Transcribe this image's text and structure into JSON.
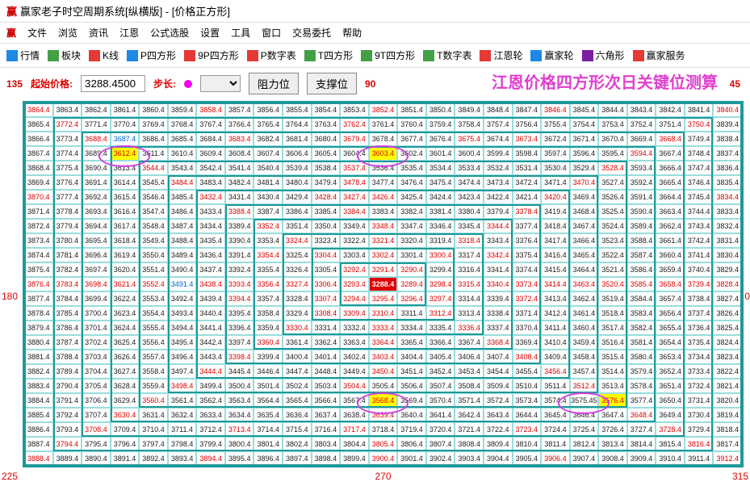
{
  "window": {
    "title": "赢家老子时空周期系统[纵横版] - [价格正方形]",
    "logo": "赢"
  },
  "menu": [
    "文件",
    "浏览",
    "资讯",
    "江恩",
    "公式选股",
    "设置",
    "工具",
    "窗口",
    "交易委托",
    "帮助"
  ],
  "toolbar": [
    {
      "icon": "#1e88e5",
      "label": "行情"
    },
    {
      "icon": "#43a047",
      "label": "板块"
    },
    {
      "icon": "#e53935",
      "label": "K线"
    },
    {
      "icon": "#1e88e5",
      "label": "P四方形"
    },
    {
      "icon": "#e53935",
      "label": "9P四方形"
    },
    {
      "icon": "#e53935",
      "label": "P数字表"
    },
    {
      "icon": "#43a047",
      "label": "T四方形"
    },
    {
      "icon": "#43a047",
      "label": "9T四方形"
    },
    {
      "icon": "#43a047",
      "label": "T数字表"
    },
    {
      "icon": "#e53935",
      "label": "江恩轮"
    },
    {
      "icon": "#1e88e5",
      "label": "赢家轮"
    },
    {
      "icon": "#7b1fa2",
      "label": "六角形"
    },
    {
      "icon": "#e53935",
      "label": "赢家服务"
    }
  ],
  "controls": {
    "c135": "135",
    "start_label": "起始价格:",
    "start_value": "3288.4500",
    "step_label": "步长:",
    "btn1": "阻力位",
    "btn2": "支撑位",
    "c90": "90",
    "overlay": "江恩价格四方形次日关键位测算",
    "c45": "45"
  },
  "axis": {
    "left": "180",
    "right": "0",
    "bl": "225",
    "bc": "270",
    "br": "315"
  },
  "grid": {
    "cols": 25,
    "rows": 19,
    "cells": [
      [
        "3864.4!r",
        "3863.4!k",
        "3862.4!k",
        "3861.4!k",
        "3860.4!k",
        "3859.4!k",
        "3858.4!r",
        "3857.4!k",
        "3856.4!k",
        "3855.4!k",
        "3854.4!k",
        "3853.4!k",
        "3852.4!r",
        "3851.4!k",
        "3850.4!k",
        "3849.4!k",
        "3848.4!k",
        "3847.4!k",
        "3846.4!r",
        "3845.4!k",
        "3844.4!k",
        "3843.4!k",
        "3842.4!k",
        "3841.4!k",
        "3840.4!r"
      ],
      [
        "3865.4!k",
        "3772.4!r",
        "3771.4!k",
        "3770.4!k",
        "3769.4!k",
        "3768.4!k",
        "3767.4!k",
        "3766.4!k",
        "3765.4!k",
        "3764.4!k",
        "3763.4!k",
        "3762.4!r",
        "3761.4!k",
        "3760.4!k",
        "3759.4!k",
        "3758.4!k",
        "3757.4!k",
        "3756.4!k",
        "3755.4!k",
        "3754.4!k",
        "3753.4!k",
        "3752.4!k",
        "3751.4!k",
        "3750.4!r",
        "3839.4!k"
      ],
      [
        "3866.4!k",
        "3773.4!k",
        "3688.4!r",
        "3687.4!b",
        "3686.4!k",
        "3685.4!k",
        "3684.4!k",
        "3683.4!r",
        "3682.4!k",
        "3681.4!k",
        "3680.4!k",
        "3679.4!r",
        "3678.4!k",
        "3677.4!k",
        "3676.4!k",
        "3675.4!r",
        "3674.4!k",
        "3673.4!r",
        "3672.4!k",
        "3671.4!k",
        "3670.4!k",
        "3669.4!k",
        "3668.4!r",
        "3749.4!k",
        "3838.4!k"
      ],
      [
        "3867.4!k",
        "3774.4!k",
        "3689.4!k",
        "3612.4!ry",
        "3611.4!k",
        "3610.4!k",
        "3609.4!k",
        "3608.4!k",
        "3607.4!k",
        "3606.4!k",
        "3605.4!k",
        "3604.4!k",
        "3603.4!ry",
        "3602.4!k",
        "3601.4!k",
        "3600.4!k",
        "3599.4!k",
        "3598.4!k",
        "3597.4!k",
        "3596.4!k",
        "3595.4!k",
        "3594.4!r",
        "3667.4!k",
        "3748.4!k",
        "3837.4!k"
      ],
      [
        "3868.4!k",
        "3775.4!k",
        "3690.4!k",
        "3613.4!k",
        "3544.4!r",
        "3543.4!k",
        "3542.4!k",
        "3541.4!k",
        "3540.4!k",
        "3539.4!k",
        "3538.4!k",
        "3537.4!r",
        "3536.4!k",
        "3535.4!k",
        "3534.4!k",
        "3533.4!k",
        "3532.4!k",
        "3531.4!k",
        "3530.4!k",
        "3529.4!k",
        "3528.4!r",
        "3593.4!k",
        "3666.4!k",
        "3747.4!k",
        "3836.4!k"
      ],
      [
        "3869.4!k",
        "3776.4!k",
        "3691.4!k",
        "3614.4!k",
        "3545.4!k",
        "3484.4!r",
        "3483.4!k",
        "3482.4!k",
        "3481.4!k",
        "3480.4!k",
        "3479.4!k",
        "3478.4!r",
        "3477.4!k",
        "3476.4!k",
        "3475.4!k",
        "3474.4!k",
        "3473.4!k",
        "3472.4!k",
        "3471.4!k",
        "3470.4!r",
        "3527.4!k",
        "3592.4!k",
        "3665.4!k",
        "3746.4!k",
        "3835.4!k"
      ],
      [
        "3870.4!r",
        "3777.4!k",
        "3692.4!k",
        "3615.4!k",
        "3546.4!k",
        "3485.4!k",
        "3432.4!r",
        "3431.4!k",
        "3430.4!k",
        "3429.4!k",
        "3428.4!r",
        "3427.4!r",
        "3426.4!r",
        "3425.4!k",
        "3424.4!k",
        "3423.4!k",
        "3422.4!k",
        "3421.4!k",
        "3420.4!r",
        "3469.4!k",
        "3526.4!k",
        "3591.4!k",
        "3664.4!k",
        "3745.4!k",
        "3834.4!r"
      ],
      [
        "3871.4!k",
        "3778.4!k",
        "3693.4!k",
        "3616.4!k",
        "3547.4!k",
        "3486.4!k",
        "3433.4!k",
        "3388.4!r",
        "3387.4!k",
        "3386.4!k",
        "3385.4!k",
        "3384.4!r",
        "3383.4!k",
        "3382.4!k",
        "3381.4!k",
        "3380.4!k",
        "3379.4!k",
        "3378.4!r",
        "3419.4!k",
        "3468.4!k",
        "3525.4!k",
        "3590.4!k",
        "3663.4!k",
        "3744.4!k",
        "3833.4!k"
      ],
      [
        "3872.4!k",
        "3779.4!k",
        "3694.4!k",
        "3617.4!k",
        "3548.4!k",
        "3487.4!k",
        "3434.4!k",
        "3389.4!k",
        "3352.4!r",
        "3351.4!k",
        "3350.4!k",
        "3349.4!k",
        "3348.4!r",
        "3347.4!k",
        "3346.4!k",
        "3345.4!k",
        "3344.4!r",
        "3377.4!k",
        "3418.4!k",
        "3467.4!k",
        "3524.4!k",
        "3589.4!k",
        "3662.4!k",
        "3743.4!k",
        "3832.4!k"
      ],
      [
        "3873.4!k",
        "3780.4!k",
        "3695.4!k",
        "3618.4!k",
        "3549.4!k",
        "3488.4!k",
        "3435.4!k",
        "3390.4!k",
        "3353.4!k",
        "3324.4!r",
        "3323.4!k",
        "3322.4!k",
        "3321.4!r",
        "3320.4!k",
        "3319.4!k",
        "3318.4!r",
        "3343.4!k",
        "3376.4!k",
        "3417.4!k",
        "3466.4!k",
        "3523.4!k",
        "3588.4!k",
        "3661.4!k",
        "3742.4!k",
        "3831.4!k"
      ],
      [
        "3874.4!k",
        "3781.4!k",
        "3696.4!k",
        "3619.4!k",
        "3550.4!k",
        "3489.4!k",
        "3436.4!k",
        "3391.4!k",
        "3354.4!r",
        "3325.4!k",
        "3304.4!r",
        "3303.4!k",
        "3302.4!r",
        "3301.4!k",
        "3300.4!r",
        "3317.4!k",
        "3342.4!r",
        "3375.4!k",
        "3416.4!k",
        "3465.4!k",
        "3522.4!k",
        "3587.4!k",
        "3660.4!k",
        "3741.4!k",
        "3830.4!k"
      ],
      [
        "3875.4!k",
        "3782.4!k",
        "3697.4!k",
        "3620.4!k",
        "3551.4!k",
        "3490.4!k",
        "3437.4!k",
        "3392.4!k",
        "3355.4!k",
        "3326.4!k",
        "3305.4!k",
        "3292.4!r",
        "3291.4!r",
        "3290.4!r",
        "3299.4!k",
        "3316.4!k",
        "3341.4!k",
        "3374.4!k",
        "3415.4!k",
        "3464.4!k",
        "3521.4!k",
        "3586.4!k",
        "3659.4!k",
        "3740.4!k",
        "3829.4!k"
      ],
      [
        "3876.4!r",
        "3783.4!r",
        "3698.4!r",
        "3621.4!r",
        "3552.4!r",
        "3491.4!b",
        "3438.4!r",
        "3393.4!r",
        "3356.4!r",
        "3327.4!r",
        "3306.4!r",
        "3293.4!r",
        "3288.4!c",
        "3289.4!r",
        "3298.4!r",
        "3315.4!r",
        "3340.4!r",
        "3373.4!r",
        "3414.4!r",
        "3463.4!r",
        "3520.4!r",
        "3585.4!r",
        "3658.4!r",
        "3739.4!r",
        "3828.4!r"
      ],
      [
        "3877.4!k",
        "3784.4!k",
        "3699.4!k",
        "3622.4!k",
        "3553.4!k",
        "3492.4!k",
        "3439.4!k",
        "3394.4!r",
        "3357.4!k",
        "3328.4!k",
        "3307.4!r",
        "3294.4!r",
        "3295.4!r",
        "3296.4!r",
        "3297.4!r",
        "3314.4!k",
        "3339.4!k",
        "3372.4!r",
        "3413.4!k",
        "3462.4!k",
        "3519.4!k",
        "3584.4!k",
        "3657.4!k",
        "3738.4!k",
        "3827.4!k"
      ],
      [
        "3878.4!k",
        "3785.4!k",
        "3700.4!k",
        "3623.4!k",
        "3554.4!k",
        "3493.4!k",
        "3440.4!k",
        "3395.4!k",
        "3358.4!k",
        "3329.4!k",
        "3308.4!r",
        "3309.4!r",
        "3310.4!r",
        "3311.4!k",
        "3312.4!r",
        "3313.4!k",
        "3338.4!k",
        "3371.4!k",
        "3412.4!k",
        "3461.4!k",
        "3518.4!k",
        "3583.4!k",
        "3656.4!k",
        "3737.4!k",
        "3826.4!k"
      ],
      [
        "3879.4!k",
        "3786.4!k",
        "3701.4!k",
        "3624.4!k",
        "3555.4!k",
        "3494.4!k",
        "3441.4!k",
        "3396.4!k",
        "3359.4!k",
        "3330.4!r",
        "3331.4!k",
        "3332.4!k",
        "3333.4!r",
        "3334.4!k",
        "3335.4!k",
        "3336.4!r",
        "3337.4!k",
        "3370.4!k",
        "3411.4!k",
        "3460.4!k",
        "3517.4!k",
        "3582.4!k",
        "3655.4!k",
        "3736.4!k",
        "3825.4!k"
      ],
      [
        "3880.4!k",
        "3787.4!k",
        "3702.4!k",
        "3625.4!k",
        "3556.4!k",
        "3495.4!k",
        "3442.4!k",
        "3397.4!k",
        "3360.4!r",
        "3361.4!k",
        "3362.4!k",
        "3363.4!k",
        "3364.4!r",
        "3365.4!k",
        "3366.4!k",
        "3367.4!k",
        "3368.4!r",
        "3369.4!k",
        "3410.4!k",
        "3459.4!k",
        "3516.4!k",
        "3581.4!k",
        "3654.4!k",
        "3735.4!k",
        "3824.4!k"
      ],
      [
        "3881.4!k",
        "3788.4!k",
        "3703.4!k",
        "3626.4!k",
        "3557.4!k",
        "3496.4!k",
        "3443.4!k",
        "3398.4!r",
        "3399.4!k",
        "3400.4!k",
        "3401.4!k",
        "3402.4!k",
        "3403.4!r",
        "3404.4!k",
        "3405.4!k",
        "3406.4!k",
        "3407.4!k",
        "3408.4!r",
        "3409.4!k",
        "3458.4!k",
        "3515.4!k",
        "3580.4!k",
        "3653.4!k",
        "3734.4!k",
        "3823.4!k"
      ],
      [
        "3882.4!k",
        "3789.4!k",
        "3704.4!k",
        "3627.4!k",
        "3558.4!k",
        "3497.4!k",
        "3444.4!r",
        "3445.4!k",
        "3446.4!k",
        "3447.4!k",
        "3448.4!k",
        "3449.4!k",
        "3450.4!r",
        "3451.4!k",
        "3452.4!k",
        "3453.4!k",
        "3454.4!k",
        "3455.4!k",
        "3456.4!r",
        "3457.4!k",
        "3514.4!k",
        "3579.4!k",
        "3652.4!k",
        "3733.4!k",
        "3822.4!k"
      ]
    ],
    "more_rows": [
      [
        "3883.4!k",
        "3790.4!k",
        "3705.4!k",
        "3628.4!k",
        "3559.4!k",
        "3498.4!r",
        "3499.4!k",
        "3500.4!k",
        "3501.4!k",
        "3502.4!k",
        "3503.4!k",
        "3504.4!r",
        "3505.4!k",
        "3506.4!k",
        "3507.4!k",
        "3508.4!k",
        "3509.4!k",
        "3510.4!k",
        "3511.4!k",
        "3512.4!r",
        "3513.4!k",
        "3578.4!k",
        "3651.4!k",
        "3732.4!k",
        "3821.4!k"
      ],
      [
        "3884.4!k",
        "3791.4!k",
        "3706.4!k",
        "3629.4!k",
        "3560.4!r",
        "3561.4!k",
        "3562.4!k",
        "3563.4!k",
        "3564.4!k",
        "3565.4!k",
        "3566.4!k",
        "3567.4!k",
        "3568.4!ry",
        "3569.4!k",
        "3570.4!k",
        "3571.4!k",
        "3572.4!k",
        "3573.4!k",
        "3574.4!k",
        "3575.45",
        "3576.4!ry",
        "3577.4!k",
        "3650.4!k",
        "3731.4!k",
        "3820.4!k"
      ],
      [
        "3885.4!k",
        "3792.4!k",
        "3707.4!k",
        "3630.4!r",
        "3631.4!k",
        "3632.4!k",
        "3633.4!k",
        "3634.4!k",
        "3635.4!k",
        "3636.4!k",
        "3637.4!k",
        "3638.4!k",
        "3639.4!r",
        "3640.4!k",
        "3641.4!k",
        "3642.4!k",
        "3643.4!k",
        "3644.4!k",
        "3645.4!k",
        "3646.4!k",
        "3647.4!k",
        "3648.4!r",
        "3649.4!k",
        "3730.4!k",
        "3819.4!k"
      ],
      [
        "3886.4!k",
        "3793.4!k",
        "3708.4!r",
        "3709.4!k",
        "3710.4!k",
        "3711.4!k",
        "3712.4!k",
        "3713.4!r",
        "3714.4!k",
        "3715.4!k",
        "3716.4!k",
        "3717.4!r",
        "3718.4!k",
        "3719.4!k",
        "3720.4!k",
        "3721.4!k",
        "3722.4!k",
        "3723.4!r",
        "3724.4!k",
        "3725.4!k",
        "3726.4!k",
        "3727.4!k",
        "3728.4!r",
        "3729.4!k",
        "3818.4!k"
      ],
      [
        "3887.4!k",
        "3794.4!r",
        "3795.4!k",
        "3796.4!k",
        "3797.4!k",
        "3798.4!k",
        "3799.4!k",
        "3800.4!k",
        "3801.4!k",
        "3802.4!k",
        "3803.4!k",
        "3804.4!k",
        "3805.4!r",
        "3806.4!k",
        "3807.4!k",
        "3808.4!k",
        "3809.4!k",
        "3810.4!k",
        "3811.4!k",
        "3812.4!k",
        "3813.4!k",
        "3814.4!k",
        "3815.4!k",
        "3816.4!r",
        "3817.4!k"
      ],
      [
        "3888.4!r",
        "3889.4!k",
        "3890.4!k",
        "3891.4!k",
        "3892.4!k",
        "3893.4!k",
        "3894.4!r",
        "3895.4!k",
        "3896.4!k",
        "3897.4!k",
        "3898.4!k",
        "3899.4!k",
        "3900.4!r",
        "3901.4!k",
        "3902.4!k",
        "3903.4!k",
        "3904.4!k",
        "3905.4!k",
        "3906.4!r",
        "3907.4!k",
        "3908.4!k",
        "3909.4!k",
        "3910.4!k",
        "3911.4!k",
        "3912.4!r"
      ]
    ]
  }
}
